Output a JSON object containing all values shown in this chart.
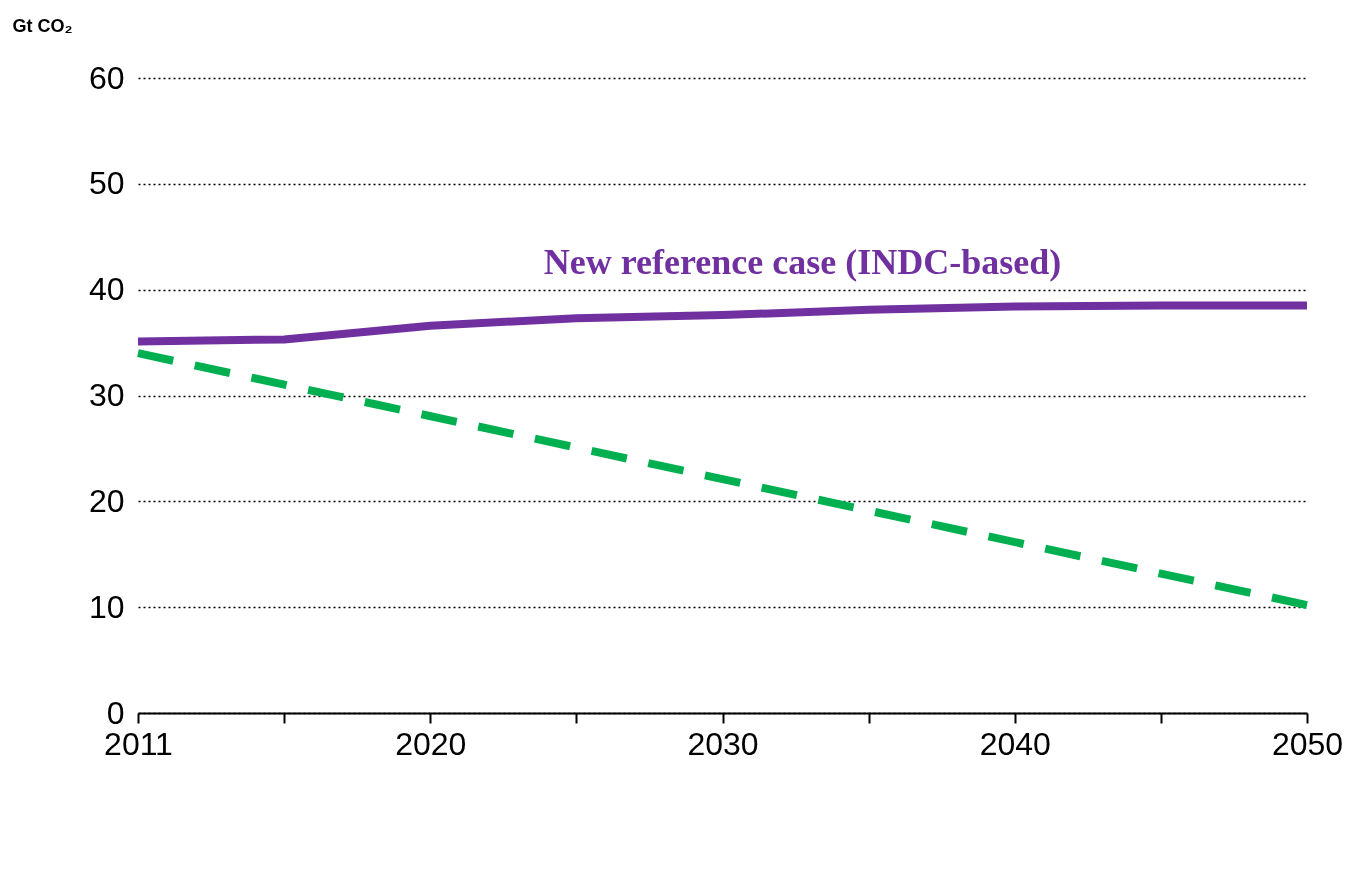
{
  "chart_data": {
    "type": "line",
    "ylabel": "Gt CO₂",
    "categories": [
      "2011",
      null,
      "2020",
      null,
      "2030",
      null,
      "2040",
      null,
      "2050"
    ],
    "ylim": [
      0,
      60
    ],
    "yticks": [
      0,
      10,
      20,
      30,
      40,
      50,
      60
    ],
    "grid": "y",
    "series": [
      {
        "name": "New reference case (INDC-based)",
        "color": "#7030a0",
        "line_style": "solid",
        "values": [
          35.1,
          35.3,
          36.6,
          37.3,
          37.6,
          38.1,
          38.4,
          38.5,
          38.5
        ]
      },
      {
        "color": "#00b050",
        "line_style": "dashed",
        "values": [
          34.0,
          null,
          null,
          null,
          null,
          null,
          null,
          null,
          10.2
        ]
      }
    ]
  }
}
